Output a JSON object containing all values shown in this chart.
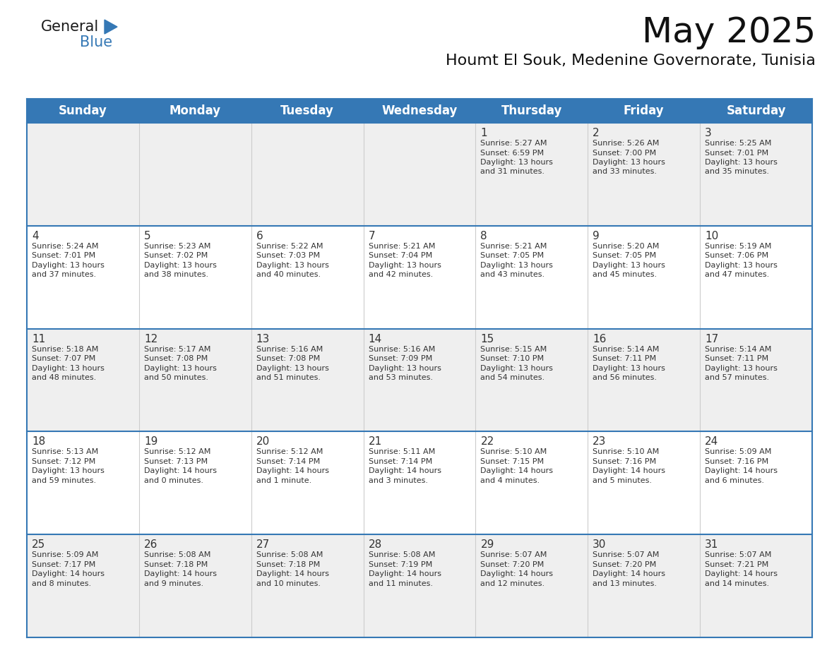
{
  "title": "May 2025",
  "subtitle": "Houmt El Souk, Medenine Governorate, Tunisia",
  "header_bg_color": "#3578b5",
  "header_text_color": "#ffffff",
  "day_names": [
    "Sunday",
    "Monday",
    "Tuesday",
    "Wednesday",
    "Thursday",
    "Friday",
    "Saturday"
  ],
  "background_color": "#ffffff",
  "cell_bg_row0": "#efefef",
  "cell_bg_row1": "#ffffff",
  "cell_bg_row2": "#efefef",
  "cell_bg_row3": "#ffffff",
  "cell_bg_row4": "#efefef",
  "day_num_color": "#333333",
  "text_color": "#333333",
  "separator_color": "#3578b5",
  "title_fontsize": 36,
  "subtitle_fontsize": 16,
  "header_fontsize": 12,
  "daynum_fontsize": 11,
  "cell_fontsize": 8,
  "logo_general_color": "#1a1a1a",
  "logo_blue_color": "#3578b5",
  "logo_triangle_color": "#3578b5",
  "days": [
    {
      "day": 1,
      "col": 4,
      "row": 0,
      "sunrise": "5:27 AM",
      "sunset": "6:59 PM",
      "daylight_hours": 13,
      "daylight_minutes": 31
    },
    {
      "day": 2,
      "col": 5,
      "row": 0,
      "sunrise": "5:26 AM",
      "sunset": "7:00 PM",
      "daylight_hours": 13,
      "daylight_minutes": 33
    },
    {
      "day": 3,
      "col": 6,
      "row": 0,
      "sunrise": "5:25 AM",
      "sunset": "7:01 PM",
      "daylight_hours": 13,
      "daylight_minutes": 35
    },
    {
      "day": 4,
      "col": 0,
      "row": 1,
      "sunrise": "5:24 AM",
      "sunset": "7:01 PM",
      "daylight_hours": 13,
      "daylight_minutes": 37
    },
    {
      "day": 5,
      "col": 1,
      "row": 1,
      "sunrise": "5:23 AM",
      "sunset": "7:02 PM",
      "daylight_hours": 13,
      "daylight_minutes": 38
    },
    {
      "day": 6,
      "col": 2,
      "row": 1,
      "sunrise": "5:22 AM",
      "sunset": "7:03 PM",
      "daylight_hours": 13,
      "daylight_minutes": 40
    },
    {
      "day": 7,
      "col": 3,
      "row": 1,
      "sunrise": "5:21 AM",
      "sunset": "7:04 PM",
      "daylight_hours": 13,
      "daylight_minutes": 42
    },
    {
      "day": 8,
      "col": 4,
      "row": 1,
      "sunrise": "5:21 AM",
      "sunset": "7:05 PM",
      "daylight_hours": 13,
      "daylight_minutes": 43
    },
    {
      "day": 9,
      "col": 5,
      "row": 1,
      "sunrise": "5:20 AM",
      "sunset": "7:05 PM",
      "daylight_hours": 13,
      "daylight_minutes": 45
    },
    {
      "day": 10,
      "col": 6,
      "row": 1,
      "sunrise": "5:19 AM",
      "sunset": "7:06 PM",
      "daylight_hours": 13,
      "daylight_minutes": 47
    },
    {
      "day": 11,
      "col": 0,
      "row": 2,
      "sunrise": "5:18 AM",
      "sunset": "7:07 PM",
      "daylight_hours": 13,
      "daylight_minutes": 48
    },
    {
      "day": 12,
      "col": 1,
      "row": 2,
      "sunrise": "5:17 AM",
      "sunset": "7:08 PM",
      "daylight_hours": 13,
      "daylight_minutes": 50
    },
    {
      "day": 13,
      "col": 2,
      "row": 2,
      "sunrise": "5:16 AM",
      "sunset": "7:08 PM",
      "daylight_hours": 13,
      "daylight_minutes": 51
    },
    {
      "day": 14,
      "col": 3,
      "row": 2,
      "sunrise": "5:16 AM",
      "sunset": "7:09 PM",
      "daylight_hours": 13,
      "daylight_minutes": 53
    },
    {
      "day": 15,
      "col": 4,
      "row": 2,
      "sunrise": "5:15 AM",
      "sunset": "7:10 PM",
      "daylight_hours": 13,
      "daylight_minutes": 54
    },
    {
      "day": 16,
      "col": 5,
      "row": 2,
      "sunrise": "5:14 AM",
      "sunset": "7:11 PM",
      "daylight_hours": 13,
      "daylight_minutes": 56
    },
    {
      "day": 17,
      "col": 6,
      "row": 2,
      "sunrise": "5:14 AM",
      "sunset": "7:11 PM",
      "daylight_hours": 13,
      "daylight_minutes": 57
    },
    {
      "day": 18,
      "col": 0,
      "row": 3,
      "sunrise": "5:13 AM",
      "sunset": "7:12 PM",
      "daylight_hours": 13,
      "daylight_minutes": 59
    },
    {
      "day": 19,
      "col": 1,
      "row": 3,
      "sunrise": "5:12 AM",
      "sunset": "7:13 PM",
      "daylight_hours": 14,
      "daylight_minutes": 0
    },
    {
      "day": 20,
      "col": 2,
      "row": 3,
      "sunrise": "5:12 AM",
      "sunset": "7:14 PM",
      "daylight_hours": 14,
      "daylight_minutes": 1
    },
    {
      "day": 21,
      "col": 3,
      "row": 3,
      "sunrise": "5:11 AM",
      "sunset": "7:14 PM",
      "daylight_hours": 14,
      "daylight_minutes": 3
    },
    {
      "day": 22,
      "col": 4,
      "row": 3,
      "sunrise": "5:10 AM",
      "sunset": "7:15 PM",
      "daylight_hours": 14,
      "daylight_minutes": 4
    },
    {
      "day": 23,
      "col": 5,
      "row": 3,
      "sunrise": "5:10 AM",
      "sunset": "7:16 PM",
      "daylight_hours": 14,
      "daylight_minutes": 5
    },
    {
      "day": 24,
      "col": 6,
      "row": 3,
      "sunrise": "5:09 AM",
      "sunset": "7:16 PM",
      "daylight_hours": 14,
      "daylight_minutes": 6
    },
    {
      "day": 25,
      "col": 0,
      "row": 4,
      "sunrise": "5:09 AM",
      "sunset": "7:17 PM",
      "daylight_hours": 14,
      "daylight_minutes": 8
    },
    {
      "day": 26,
      "col": 1,
      "row": 4,
      "sunrise": "5:08 AM",
      "sunset": "7:18 PM",
      "daylight_hours": 14,
      "daylight_minutes": 9
    },
    {
      "day": 27,
      "col": 2,
      "row": 4,
      "sunrise": "5:08 AM",
      "sunset": "7:18 PM",
      "daylight_hours": 14,
      "daylight_minutes": 10
    },
    {
      "day": 28,
      "col": 3,
      "row": 4,
      "sunrise": "5:08 AM",
      "sunset": "7:19 PM",
      "daylight_hours": 14,
      "daylight_minutes": 11
    },
    {
      "day": 29,
      "col": 4,
      "row": 4,
      "sunrise": "5:07 AM",
      "sunset": "7:20 PM",
      "daylight_hours": 14,
      "daylight_minutes": 12
    },
    {
      "day": 30,
      "col": 5,
      "row": 4,
      "sunrise": "5:07 AM",
      "sunset": "7:20 PM",
      "daylight_hours": 14,
      "daylight_minutes": 13
    },
    {
      "day": 31,
      "col": 6,
      "row": 4,
      "sunrise": "5:07 AM",
      "sunset": "7:21 PM",
      "daylight_hours": 14,
      "daylight_minutes": 14
    }
  ]
}
